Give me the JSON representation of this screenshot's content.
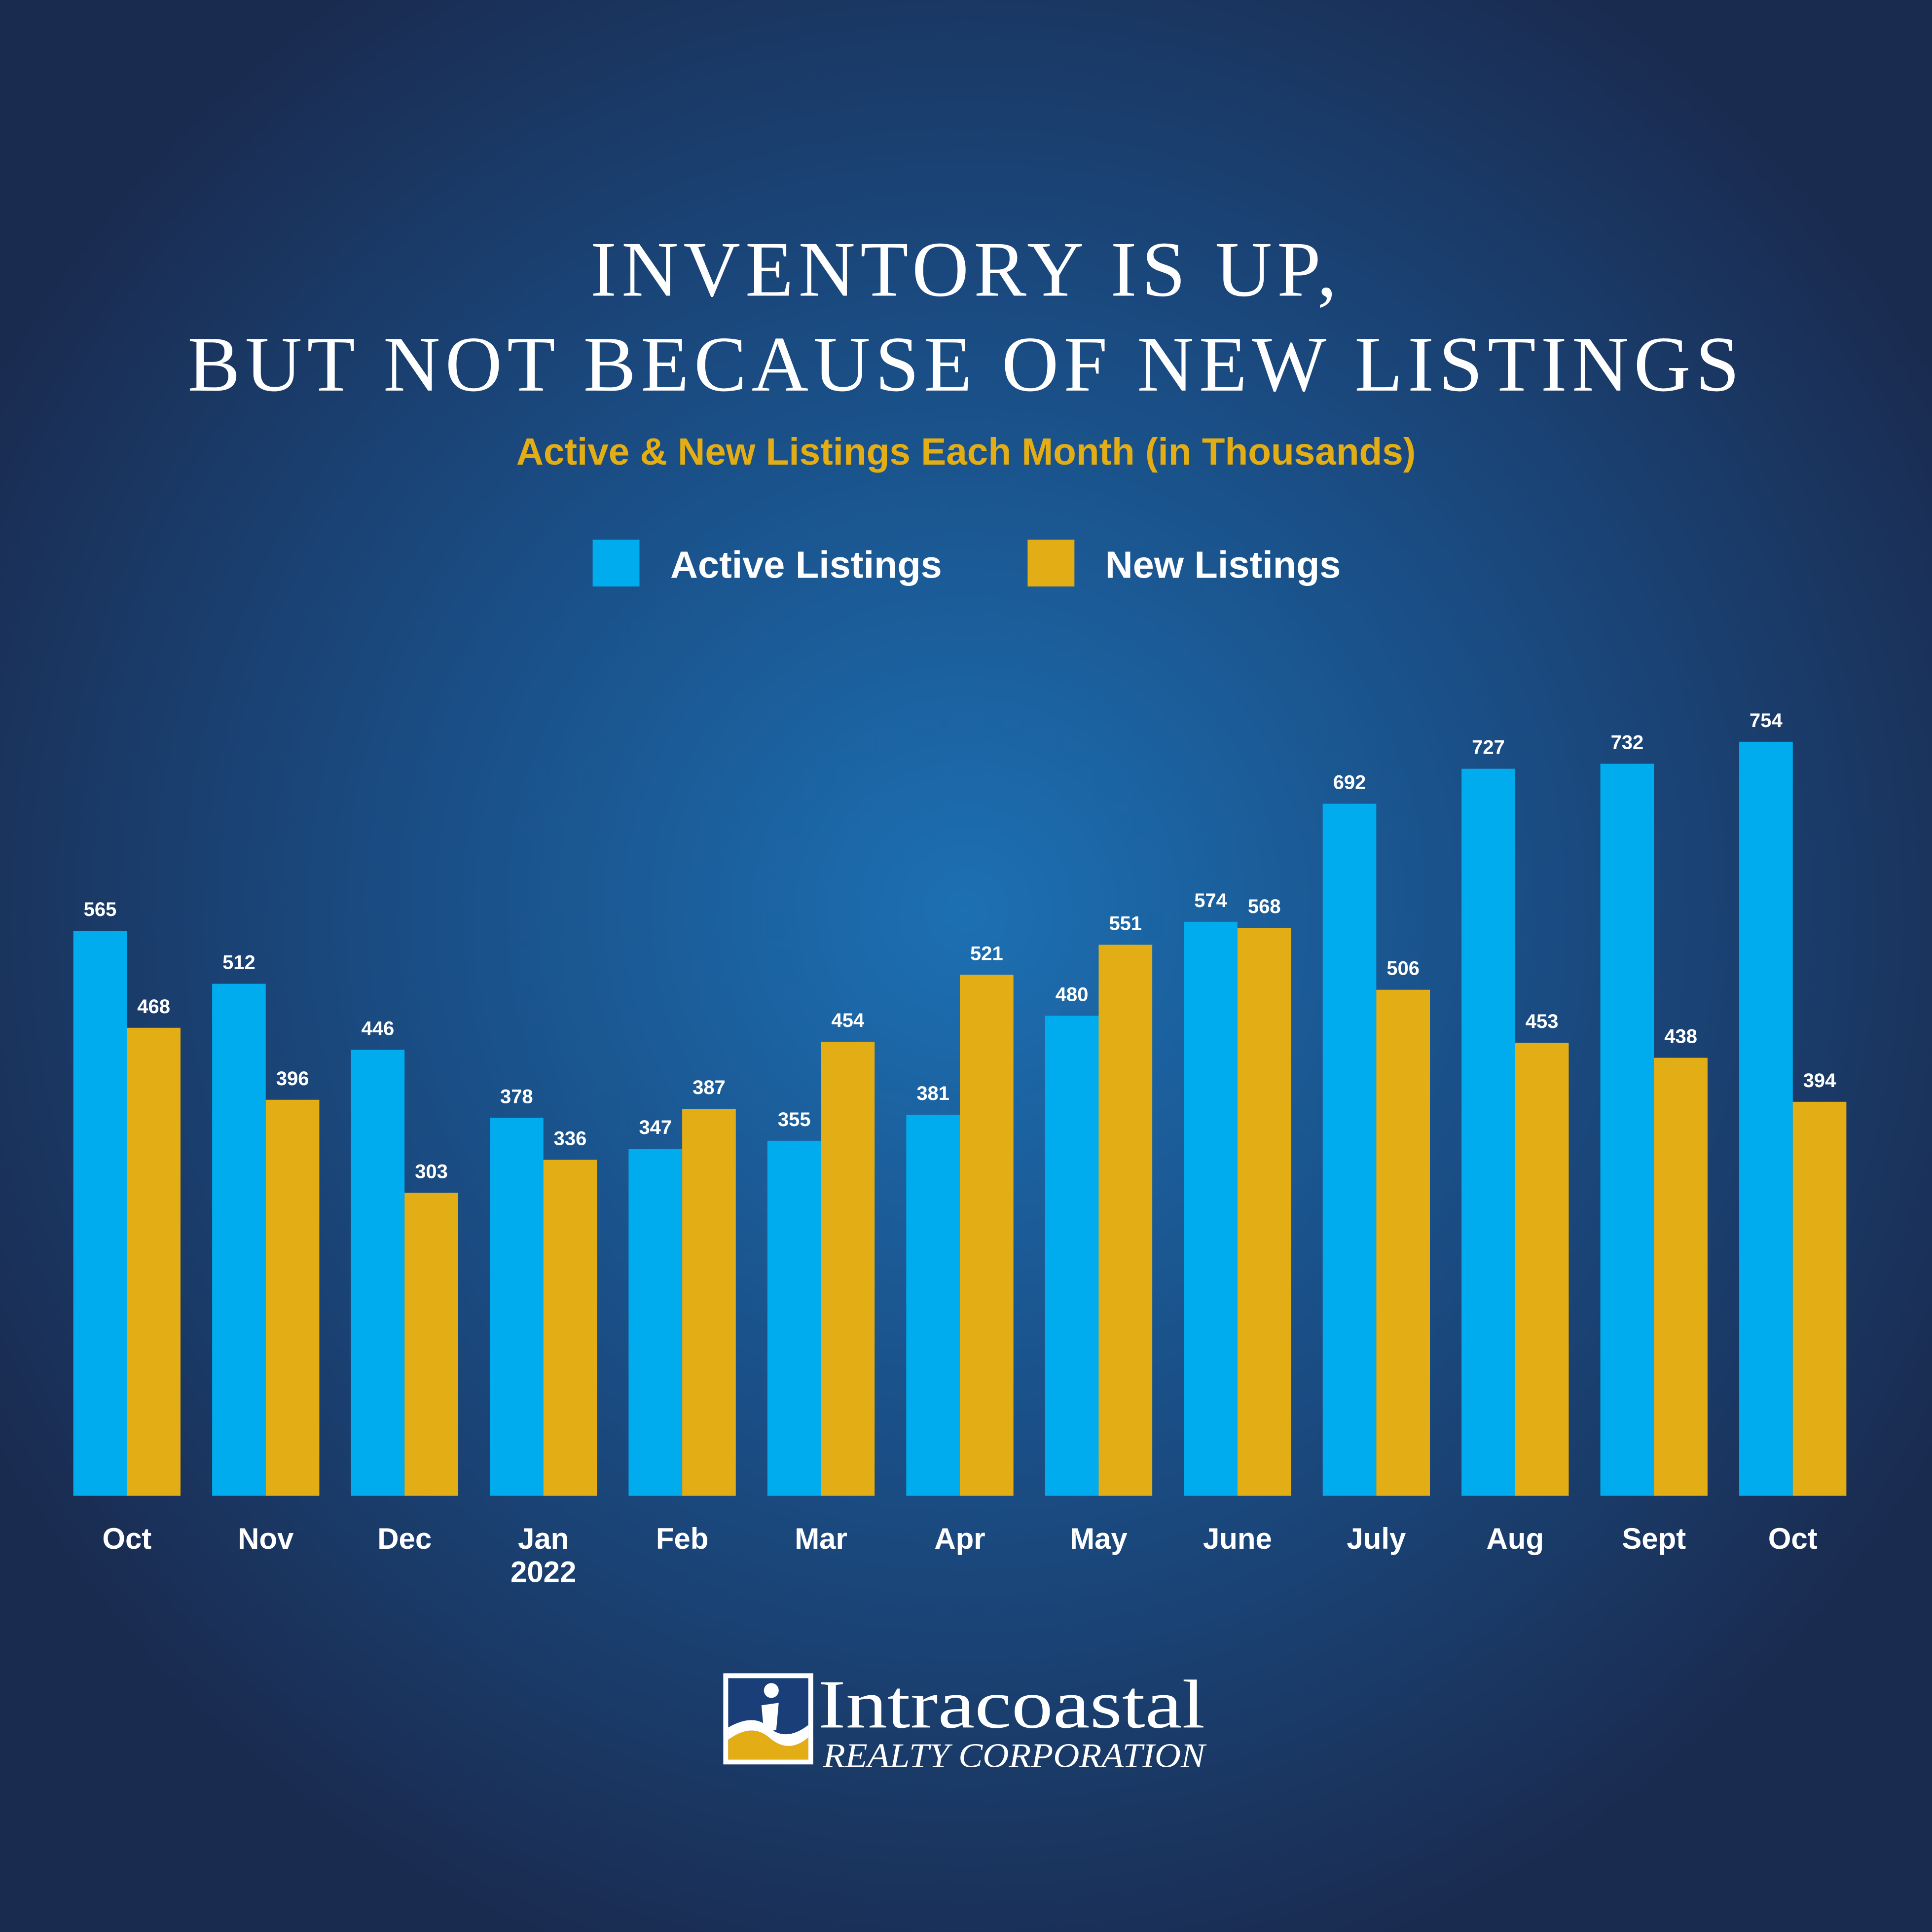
{
  "chart_data": {
    "type": "bar",
    "title": [
      "INVENTORY IS UP,",
      "BUT NOT BECAUSE OF NEW LISTINGS"
    ],
    "subtitle": "Active & New Listings Each Month (in Thousands)",
    "categories": [
      "Oct",
      "Nov",
      "Dec",
      "Jan 2022",
      "Feb",
      "Mar",
      "Apr",
      "May",
      "June",
      "July",
      "Aug",
      "Sept",
      "Oct"
    ],
    "series": [
      {
        "name": "Active Listings",
        "color": "#00aced",
        "values": [
          565,
          512,
          446,
          378,
          347,
          355,
          381,
          480,
          574,
          692,
          727,
          732,
          754
        ]
      },
      {
        "name": "New Listings",
        "color": "#e3ad16",
        "values": [
          468,
          396,
          303,
          336,
          387,
          454,
          521,
          551,
          568,
          506,
          453,
          438,
          394
        ]
      }
    ],
    "legend": "top"
  },
  "logo": {
    "name": "Intracoastal",
    "tagline": "REALTY CORPORATION"
  }
}
